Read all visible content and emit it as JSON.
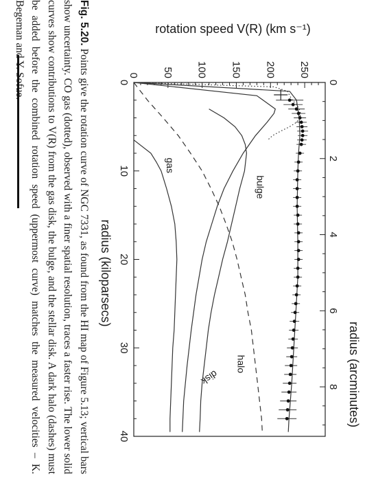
{
  "chart_data": {
    "type": "line",
    "title": "",
    "xlabel": "radius (kiloparsecs)",
    "ylabel": "rotation speed V(R) (km s⁻¹)",
    "top_xlabel": "radius (arcminutes)",
    "xlim": [
      0,
      40
    ],
    "ylim": [
      0,
      280
    ],
    "x_ticks": [
      0,
      10,
      20,
      30,
      40
    ],
    "y_ticks": [
      0,
      50,
      100,
      150,
      200,
      250
    ],
    "top_xlim": [
      0,
      9.3
    ],
    "top_ticks": [
      0,
      2,
      4,
      6,
      8
    ],
    "grid": false,
    "series": [
      {
        "name": "",
        "style": "points-with-error-bars",
        "points": [
          {
            "x": 2.0,
            "y": 228,
            "err": 20
          },
          {
            "x": 2.5,
            "y": 233,
            "err": 14
          },
          {
            "x": 3.0,
            "y": 238,
            "err": 12
          },
          {
            "x": 3.5,
            "y": 241,
            "err": 10
          },
          {
            "x": 4.0,
            "y": 243,
            "err": 9
          },
          {
            "x": 4.5,
            "y": 245,
            "err": 8
          },
          {
            "x": 5.0,
            "y": 246,
            "err": 8
          },
          {
            "x": 5.5,
            "y": 247,
            "err": 8
          },
          {
            "x": 6.0,
            "y": 247,
            "err": 7
          },
          {
            "x": 6.5,
            "y": 246,
            "err": 7
          },
          {
            "x": 7.0,
            "y": 245,
            "err": 7
          },
          {
            "x": 8.0,
            "y": 243,
            "err": 6
          },
          {
            "x": 9.0,
            "y": 241,
            "err": 6
          },
          {
            "x": 10.0,
            "y": 240,
            "err": 6
          },
          {
            "x": 11.0,
            "y": 239,
            "err": 6
          },
          {
            "x": 12.0,
            "y": 239,
            "err": 6
          },
          {
            "x": 13.0,
            "y": 239,
            "err": 6
          },
          {
            "x": 14.0,
            "y": 239,
            "err": 6
          },
          {
            "x": 15.0,
            "y": 240,
            "err": 6
          },
          {
            "x": 16.0,
            "y": 240,
            "err": 6
          },
          {
            "x": 17.0,
            "y": 241,
            "err": 6
          },
          {
            "x": 18.0,
            "y": 241,
            "err": 6
          },
          {
            "x": 19.0,
            "y": 241,
            "err": 6
          },
          {
            "x": 20.0,
            "y": 241,
            "err": 6
          },
          {
            "x": 21.0,
            "y": 240,
            "err": 6
          },
          {
            "x": 22.0,
            "y": 240,
            "err": 6
          },
          {
            "x": 23.0,
            "y": 239,
            "err": 6
          },
          {
            "x": 24.0,
            "y": 238,
            "err": 6
          },
          {
            "x": 25.0,
            "y": 237,
            "err": 6
          },
          {
            "x": 26.0,
            "y": 236,
            "err": 6
          },
          {
            "x": 27.0,
            "y": 235,
            "err": 7
          },
          {
            "x": 28.0,
            "y": 234,
            "err": 7
          },
          {
            "x": 29.0,
            "y": 233,
            "err": 7
          },
          {
            "x": 30.0,
            "y": 232,
            "err": 8
          },
          {
            "x": 31.0,
            "y": 231,
            "err": 8
          },
          {
            "x": 32.0,
            "y": 230,
            "err": 9
          },
          {
            "x": 33.0,
            "y": 229,
            "err": 9
          },
          {
            "x": 34.0,
            "y": 228,
            "err": 10
          },
          {
            "x": 35.0,
            "y": 227,
            "err": 11
          },
          {
            "x": 36.0,
            "y": 226,
            "err": 12
          },
          {
            "x": 37.0,
            "y": 225,
            "err": 13
          },
          {
            "x": 38.0,
            "y": 224,
            "err": 14
          }
        ]
      },
      {
        "name": "",
        "style": "dotted",
        "x": [
          0,
          0.5,
          1,
          1.5,
          2,
          2.5,
          3,
          3.5,
          4,
          4.5,
          5,
          5.5,
          6,
          6.5
        ],
        "y": [
          0,
          205,
          225,
          228,
          232,
          238,
          242,
          244,
          243,
          238,
          228,
          215,
          203,
          196
        ]
      },
      {
        "name": "",
        "style": "solid",
        "x": [
          0,
          1,
          2,
          3,
          4,
          6,
          8,
          10,
          14,
          18,
          22,
          26,
          30,
          34,
          38,
          39.5
        ],
        "y": [
          0,
          228,
          238,
          240,
          242,
          243,
          241,
          240,
          239,
          240,
          240,
          237,
          234,
          231,
          227,
          226
        ]
      },
      {
        "name": "bulge",
        "style": "solid",
        "x": [
          0,
          1.5,
          3,
          3.5,
          4.5,
          6,
          8,
          10,
          12,
          14,
          16,
          18,
          20,
          24,
          28,
          32,
          36,
          39.5
        ],
        "y": [
          0,
          180,
          207,
          205,
          195,
          178,
          160,
          145,
          132,
          122,
          114,
          106,
          100,
          91,
          84,
          78,
          73,
          71
        ]
      },
      {
        "name": "disk",
        "style": "solid",
        "x": [
          3,
          4,
          5,
          6,
          7,
          8,
          10,
          12,
          14,
          16,
          18,
          20,
          22,
          24,
          26,
          28,
          30,
          32,
          34,
          36,
          38,
          39.5
        ],
        "y": [
          110,
          132,
          148,
          158,
          163,
          165,
          162,
          155,
          149,
          143,
          137,
          130,
          124,
          118,
          113,
          109,
          106,
          103,
          100,
          98,
          97,
          96
        ]
      },
      {
        "name": "gas",
        "style": "solid",
        "x": [
          6.5,
          8,
          9,
          10,
          12,
          14,
          16,
          18,
          20,
          22,
          24,
          26,
          28,
          30,
          32,
          34,
          36,
          38,
          39.5
        ],
        "y": [
          0,
          25,
          33,
          40,
          48,
          55,
          60,
          62,
          63,
          62,
          61,
          60,
          59,
          57,
          56,
          55,
          54,
          53,
          53
        ]
      },
      {
        "name": "halo",
        "style": "dashed",
        "x": [
          0,
          2,
          4,
          6,
          8,
          10,
          12,
          14,
          16,
          18,
          20,
          22,
          24,
          26,
          28,
          30,
          32,
          34,
          36,
          38,
          39.5
        ],
        "y": [
          0,
          20,
          43,
          65,
          83,
          100,
          113,
          125,
          135,
          144,
          151,
          157,
          163,
          167,
          172,
          175,
          178,
          181,
          184,
          187,
          188
        ]
      }
    ]
  },
  "caption": {
    "fig_label": "Fig. 5.20.",
    "text": " Points give the rotation curve of NGC 7331, as found from the HI map of Figure 5.13; vertical bars show uncertainty. CO gas (dotted), observed with a finer spatial resolution, traces a faster rise. The lower solid curves show contributions to V(R) from the gas disk, the bulge, and the stellar disk. A dark halo (dashes) must be added before the combined rotation speed (uppermost curve) matches the measured velocities – K. Begeman and Y. Sofue."
  }
}
